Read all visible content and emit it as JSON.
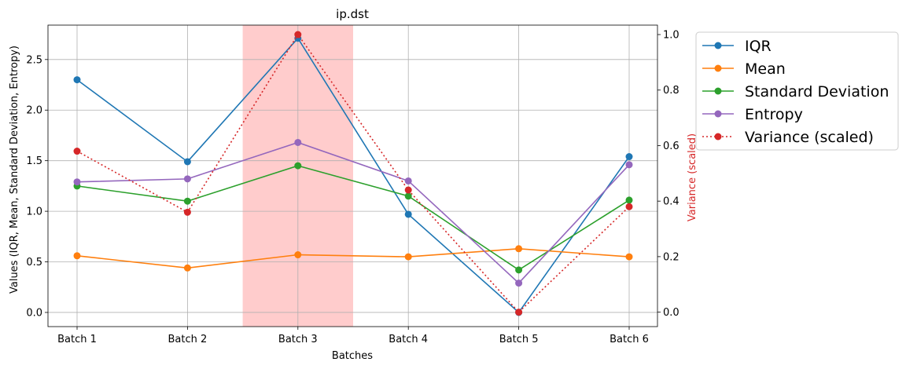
{
  "chart_data": {
    "type": "line",
    "title": "ip.dst",
    "xlabel": "Batches",
    "ylabel": "Values (IQR, Mean, Standard Deviation, Entropy)",
    "y2label": "Variance (scaled)",
    "categories": [
      "Batch 1",
      "Batch 2",
      "Batch 3",
      "Batch 4",
      "Batch 5",
      "Batch 6"
    ],
    "ylim": [
      -0.14,
      2.84
    ],
    "y2lim": [
      -0.052,
      1.034
    ],
    "yticks": [
      "0.0",
      "0.5",
      "1.0",
      "1.5",
      "2.0",
      "2.5"
    ],
    "y2ticks": [
      "0.0",
      "0.2",
      "0.4",
      "0.6",
      "0.8",
      "1.0"
    ],
    "grid": true,
    "legend_position": "outside-right",
    "highlight": {
      "from": "Batch 2.5",
      "to": "Batch 3.5",
      "color": "#ffcccc"
    },
    "series": [
      {
        "name": "IQR",
        "axis": "left",
        "color": "#1f77b4",
        "style": "solid",
        "values": [
          2.3,
          1.49,
          2.71,
          0.97,
          0.0,
          1.54
        ]
      },
      {
        "name": "Mean",
        "axis": "left",
        "color": "#ff7f0e",
        "style": "solid",
        "values": [
          0.56,
          0.44,
          0.57,
          0.55,
          0.63,
          0.55
        ]
      },
      {
        "name": "Standard Deviation",
        "axis": "left",
        "color": "#2ca02c",
        "style": "solid",
        "values": [
          1.25,
          1.1,
          1.45,
          1.15,
          0.42,
          1.11
        ]
      },
      {
        "name": "Entropy",
        "axis": "left",
        "color": "#9467bd",
        "style": "solid",
        "values": [
          1.29,
          1.32,
          1.68,
          1.3,
          0.29,
          1.46
        ]
      },
      {
        "name": "Variance (scaled)",
        "axis": "right",
        "color": "#d62728",
        "style": "dotted",
        "values": [
          0.58,
          0.36,
          1.0,
          0.44,
          0.0,
          0.38
        ]
      }
    ]
  }
}
